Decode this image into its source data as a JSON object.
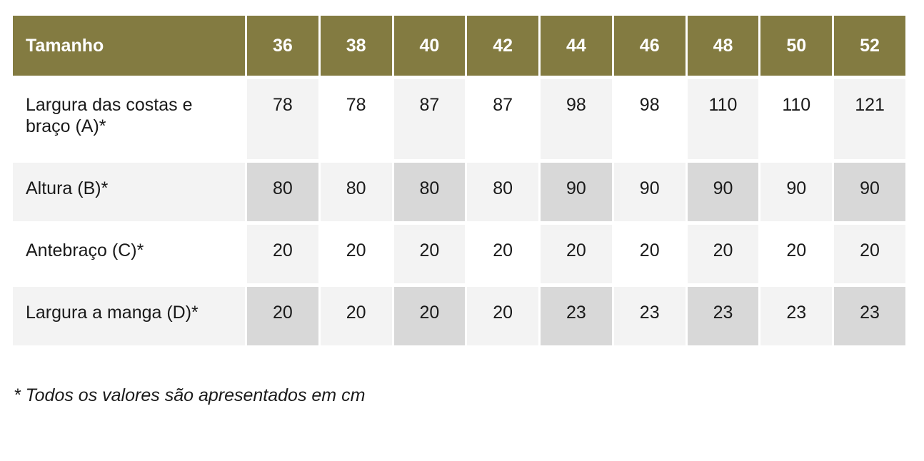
{
  "table": {
    "header": {
      "label": "Tamanho",
      "sizes": [
        "36",
        "38",
        "40",
        "42",
        "44",
        "46",
        "48",
        "50",
        "52"
      ]
    },
    "rows": [
      {
        "label": "Largura das costas e braço (A)*",
        "values": [
          "78",
          "78",
          "87",
          "87",
          "98",
          "98",
          "110",
          "110",
          "121"
        ]
      },
      {
        "label": "Altura (B)*",
        "values": [
          "80",
          "80",
          "80",
          "80",
          "90",
          "90",
          "90",
          "90",
          "90"
        ]
      },
      {
        "label": "Antebraço (C)*",
        "values": [
          "20",
          "20",
          "20",
          "20",
          "20",
          "20",
          "20",
          "20",
          "20"
        ]
      },
      {
        "label": "Largura a manga (D)*",
        "values": [
          "20",
          "20",
          "20",
          "20",
          "23",
          "23",
          "23",
          "23",
          "23"
        ]
      }
    ]
  },
  "footnote": "* Todos os valores são apresentados em cm",
  "colors": {
    "header_bg": "#837B41",
    "header_text": "#FFFFFF",
    "band_light": "#F3F3F3",
    "band_dark": "#D8D8D8",
    "body_text": "#1A1A1A",
    "page_bg": "#FFFFFF"
  }
}
